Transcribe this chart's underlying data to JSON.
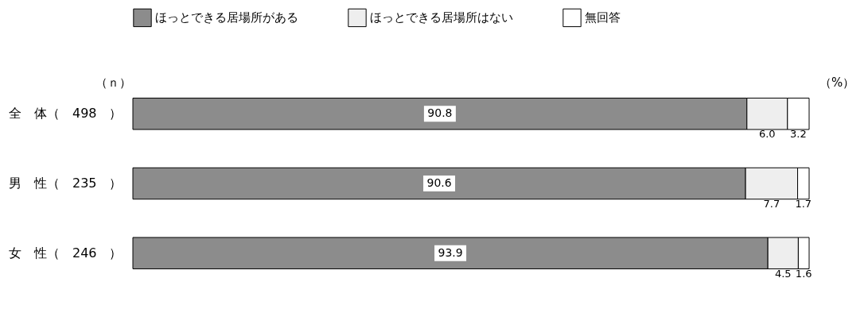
{
  "chart_data": {
    "type": "bar",
    "orientation": "horizontal",
    "stacked": true,
    "categories": [
      "全　体（　498　）",
      "男　性（　235　）",
      "女　性（　246　）"
    ],
    "series": [
      {
        "name": "ほっとできる居場所がある",
        "color": "#8c8c8c",
        "values": [
          90.8,
          90.6,
          93.9
        ],
        "value_labels": [
          "90.8",
          "90.6",
          "93.9"
        ]
      },
      {
        "name": "ほっとできる居場所はない",
        "color": "#eeeeee",
        "values": [
          6.0,
          7.7,
          4.5
        ],
        "value_labels": [
          "6.0",
          "7.7",
          "4.5"
        ]
      },
      {
        "name": "無回答",
        "color": "#ffffff",
        "values": [
          3.2,
          1.7,
          1.6
        ],
        "value_labels": [
          "3.2",
          "1.7",
          "1.6"
        ]
      }
    ],
    "xlim": [
      0,
      100
    ],
    "tick_labels": "y",
    "legend": "top",
    "grid": false,
    "annotations": [
      "（ｎ）",
      "（%）"
    ]
  }
}
